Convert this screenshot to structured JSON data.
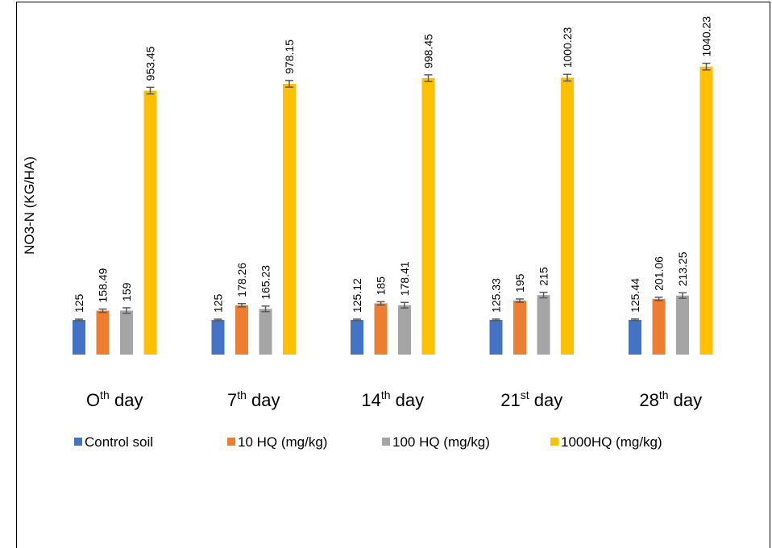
{
  "chart_data": {
    "type": "bar",
    "ylabel": "NO3-N (KG/HA)",
    "categories": [
      {
        "main": "O",
        "sup": "th",
        "rest": " day"
      },
      {
        "main": "7",
        "sup": "th",
        "rest": " day"
      },
      {
        "main": "14",
        "sup": "th",
        "rest": "  day"
      },
      {
        "main": "21",
        "sup": "st",
        "rest": " day"
      },
      {
        "main": "28",
        "sup": "th",
        "rest": " day"
      }
    ],
    "series": [
      {
        "name": "Control soil",
        "color": "#4472C4",
        "values": [
          125,
          125,
          125.12,
          125.33,
          125.44
        ],
        "labels": [
          "125",
          "125",
          "125.12",
          "125.33",
          "125.44"
        ],
        "error": [
          1,
          1,
          1,
          1,
          1
        ]
      },
      {
        "name": "10 HQ (mg/kg)",
        "color": "#ED7D31",
        "values": [
          158.49,
          178.26,
          185,
          195,
          201.06
        ],
        "labels": [
          "158.49",
          "178.26",
          "185",
          "195",
          "201.06"
        ],
        "error": [
          6,
          6,
          6,
          6,
          6
        ]
      },
      {
        "name": "100 HQ (mg/kg)",
        "color": "#A5A5A5",
        "values": [
          159,
          165.23,
          178.41,
          215,
          213.25
        ],
        "labels": [
          "159",
          "165.23",
          "178.41",
          "215",
          "213.25"
        ],
        "error": [
          10,
          10,
          10,
          10,
          10
        ]
      },
      {
        "name": "1000HQ (mg/kg)",
        "color": "#FFC000",
        "values": [
          953.45,
          978.15,
          998.45,
          1000.23,
          1040.23
        ],
        "labels": [
          "953.45",
          "978.15",
          "998.45",
          "1000.23",
          "1040.23"
        ],
        "error": [
          12,
          12,
          12,
          12,
          12
        ]
      }
    ],
    "legend_position": "bottom",
    "grid": false
  }
}
